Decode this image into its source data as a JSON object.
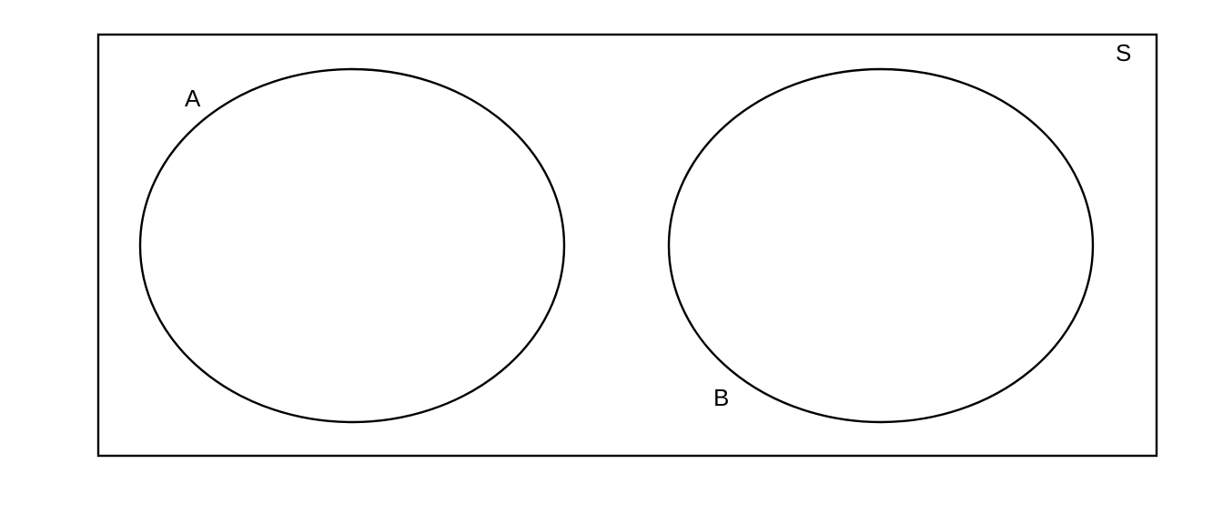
{
  "diagram": {
    "type": "venn",
    "universe": {
      "label": "S"
    },
    "sets": [
      {
        "label": "A"
      },
      {
        "label": "B"
      }
    ],
    "overlap": false,
    "colors": {
      "stroke": "#000000",
      "background": "#ffffff"
    }
  }
}
